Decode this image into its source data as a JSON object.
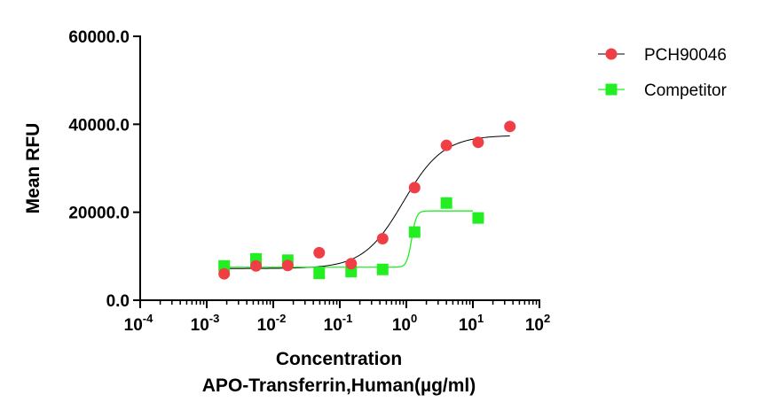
{
  "chart_data": {
    "type": "scatter",
    "ylabel": "Mean RFU",
    "xlabel_line1": "Concentration",
    "xlabel_line2": "APO-Transferrin,Human(µg/ml)",
    "x_scale": "log10",
    "xlim": [
      0.0001,
      100
    ],
    "ylim": [
      0,
      60000
    ],
    "x_ticks": [
      {
        "value": 0.0001,
        "base": "10",
        "exp": "-4"
      },
      {
        "value": 0.001,
        "base": "10",
        "exp": "-3"
      },
      {
        "value": 0.01,
        "base": "10",
        "exp": "-2"
      },
      {
        "value": 0.1,
        "base": "10",
        "exp": "-1"
      },
      {
        "value": 1,
        "base": "10",
        "exp": "0"
      },
      {
        "value": 10,
        "base": "10",
        "exp": "1"
      },
      {
        "value": 100,
        "base": "10",
        "exp": "2"
      }
    ],
    "y_ticks": [
      {
        "value": 0,
        "label": "0.0"
      },
      {
        "value": 20000,
        "label": "20000.0"
      },
      {
        "value": 40000,
        "label": "40000.0"
      },
      {
        "value": 60000,
        "label": "60000.0"
      }
    ],
    "series": [
      {
        "name": "PCH90046",
        "color": "#ef3f45",
        "marker": "circle",
        "line_color": "#000000",
        "x": [
          0.00183,
          0.0055,
          0.0165,
          0.049,
          0.148,
          0.44,
          1.33,
          4.0,
          12.0,
          36.0
        ],
        "y": [
          6000,
          7800,
          7900,
          10800,
          8300,
          14000,
          25600,
          35200,
          35900,
          39500
        ],
        "fit": {
          "type": "4PL",
          "bottom": 7200,
          "top": 37500,
          "ec50": 0.9,
          "hill": 1.45
        }
      },
      {
        "name": "Competitor",
        "color": "#22ee22",
        "marker": "square",
        "line_color": "#22ee22",
        "x": [
          0.00183,
          0.0055,
          0.0165,
          0.049,
          0.148,
          0.44,
          1.33,
          4.0,
          12.0
        ],
        "y": [
          7800,
          9400,
          9100,
          6100,
          6500,
          7000,
          15500,
          22100,
          18700
        ],
        "fit": {
          "type": "4PL",
          "bottom": 7500,
          "top": 20300,
          "ec50": 1.2,
          "hill": 12,
          "x_end": 10
        }
      }
    ]
  }
}
